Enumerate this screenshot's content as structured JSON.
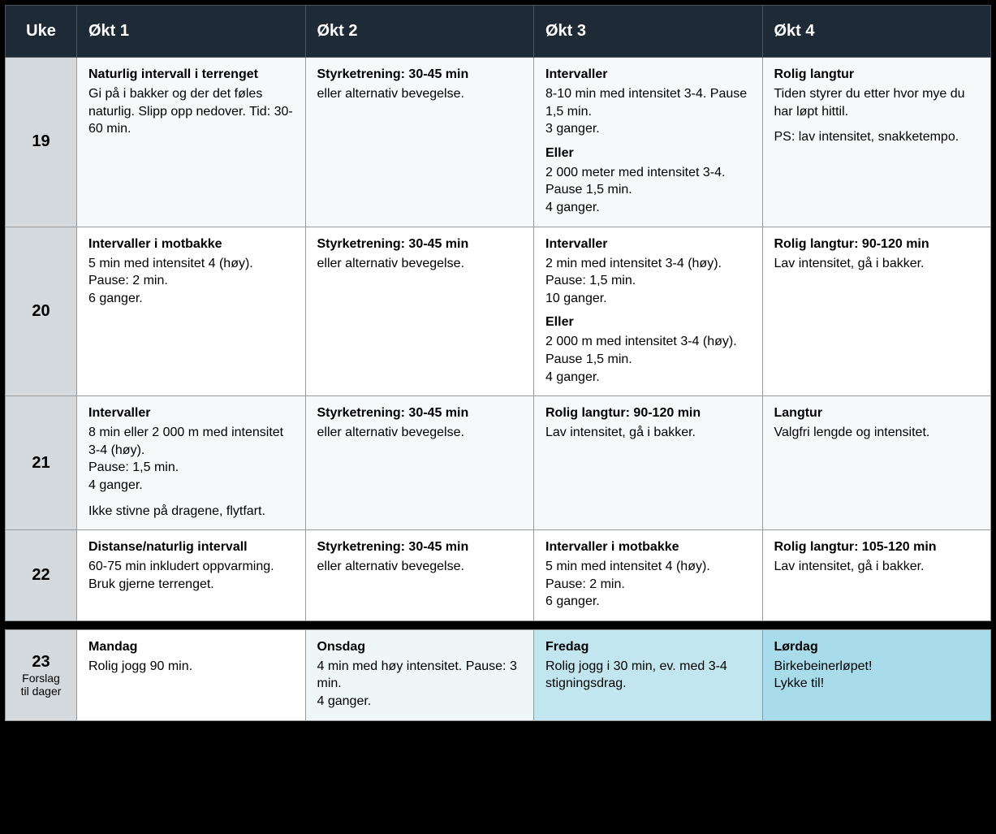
{
  "header": {
    "col0": "Uke",
    "col1": "Økt 1",
    "col2": "Økt 2",
    "col3": "Økt 3",
    "col4": "Økt 4"
  },
  "rows": [
    {
      "week": "19",
      "c1": {
        "title": "Naturlig intervall i terrenget",
        "body": "Gi på i bakker og der det føles naturlig. Slipp opp nedover. Tid: 30-60 min."
      },
      "c2": {
        "title": "Styrketrening: 30-45 min",
        "body": "eller alternativ bevegelse."
      },
      "c3": {
        "title": "Intervaller",
        "body": "8-10 min med intensitet 3-4. Pause 1,5 min.\n3 ganger.",
        "sub_label": "Eller",
        "sub_body": "2 000 meter med intensitet 3-4. Pause 1,5 min.\n4 ganger."
      },
      "c4": {
        "title": "Rolig langtur",
        "body": "Tiden styrer du etter hvor mye du har løpt hittil.",
        "extra": "PS: lav intensitet, snakketempo."
      }
    },
    {
      "week": "20",
      "c1": {
        "title": "Intervaller i motbakke",
        "body": "5 min med intensitet 4 (høy). Pause: 2 min.\n6 ganger."
      },
      "c2": {
        "title": "Styrketrening: 30-45 min",
        "body": "eller alternativ bevegelse."
      },
      "c3": {
        "title": "Intervaller",
        "body": "2 min med intensitet 3-4 (høy). Pause: 1,5 min.\n10 ganger.",
        "sub_label": "Eller",
        "sub_body": "2 000 m med intensitet 3-4 (høy). Pause 1,5 min.\n4 ganger."
      },
      "c4": {
        "title": "Rolig langtur: 90-120 min",
        "body": "Lav intensitet, gå i bakker."
      }
    },
    {
      "week": "21",
      "c1": {
        "title": "Intervaller",
        "body": "8 min eller 2 000 m med intensitet 3-4 (høy).\nPause: 1,5 min.\n4 ganger.",
        "extra": "Ikke stivne på dragene, flytfart."
      },
      "c2": {
        "title": "Styrketrening: 30-45 min",
        "body": "eller alternativ bevegelse."
      },
      "c3": {
        "title": "Rolig langtur: 90-120 min",
        "body": "Lav intensitet, gå i bakker."
      },
      "c4": {
        "title": "Langtur",
        "body": "Valgfri lengde og intensitet."
      }
    },
    {
      "week": "22",
      "c1": {
        "title": "Distanse/naturlig intervall",
        "body": "60-75 min inkludert oppvarming. Bruk gjerne terrenget."
      },
      "c2": {
        "title": "Styrketrening: 30-45 min",
        "body": "eller alternativ bevegelse."
      },
      "c3": {
        "title": "Intervaller i motbakke",
        "body": "5 min med intensitet 4 (høy). Pause: 2 min.\n6 ganger."
      },
      "c4": {
        "title": "Rolig langtur: 105-120 min",
        "body": "Lav intensitet, gå i bakker."
      }
    }
  ],
  "footer": {
    "week": "23",
    "note": "Forslag til dager",
    "c1": {
      "title": "Mandag",
      "body": "Rolig jogg 90 min."
    },
    "c2": {
      "title": "Onsdag",
      "body": "4 min med høy intensitet. Pause: 3 min.\n4 ganger."
    },
    "c3": {
      "title": "Fredag",
      "body": "Rolig jogg i 30 min, ev. med 3-4 stigningsdrag."
    },
    "c4": {
      "title": "Lørdag",
      "body": "Birkebeinerløpet!\nLykke til!"
    }
  }
}
